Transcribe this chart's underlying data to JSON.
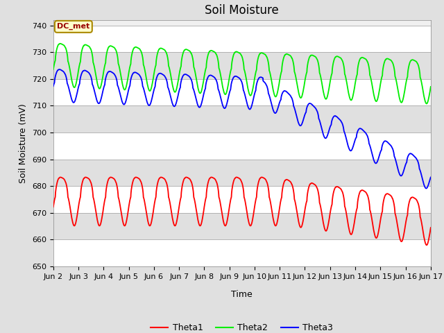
{
  "title": "Soil Moisture",
  "xlabel": "Time",
  "ylabel": "Soil Moisture (mV)",
  "ylim": [
    650,
    742
  ],
  "xlim": [
    0,
    360
  ],
  "tick_labels": [
    "Jun 2",
    "Jun 3",
    "Jun 4",
    "Jun 5",
    "Jun 6",
    "Jun 7",
    "Jun 8",
    "Jun 9",
    "Jun 10",
    "Jun 11",
    "Jun 12",
    "Jun 13",
    "Jun 14",
    "Jun 15",
    "Jun 16",
    "Jun 17"
  ],
  "tick_positions": [
    0,
    24,
    48,
    72,
    96,
    120,
    144,
    168,
    192,
    216,
    240,
    264,
    288,
    312,
    336,
    360
  ],
  "yticks": [
    650,
    660,
    670,
    680,
    690,
    700,
    710,
    720,
    730,
    740
  ],
  "annotation_text": "DC_met",
  "annotation_box_facecolor": "#ffffcc",
  "annotation_box_edgecolor": "#aa8800",
  "line_colors": {
    "Theta1": "#ff0000",
    "Theta2": "#00ee00",
    "Theta3": "#0000ff"
  },
  "legend_labels": [
    "Theta1",
    "Theta2",
    "Theta3"
  ],
  "bg_color": "#e0e0e0",
  "plot_bg_color": "#f0f0f0",
  "band_color_light": "#ffffff",
  "band_color_dark": "#e0e0e0",
  "title_fontsize": 12,
  "axis_label_fontsize": 9,
  "tick_fontsize": 8
}
